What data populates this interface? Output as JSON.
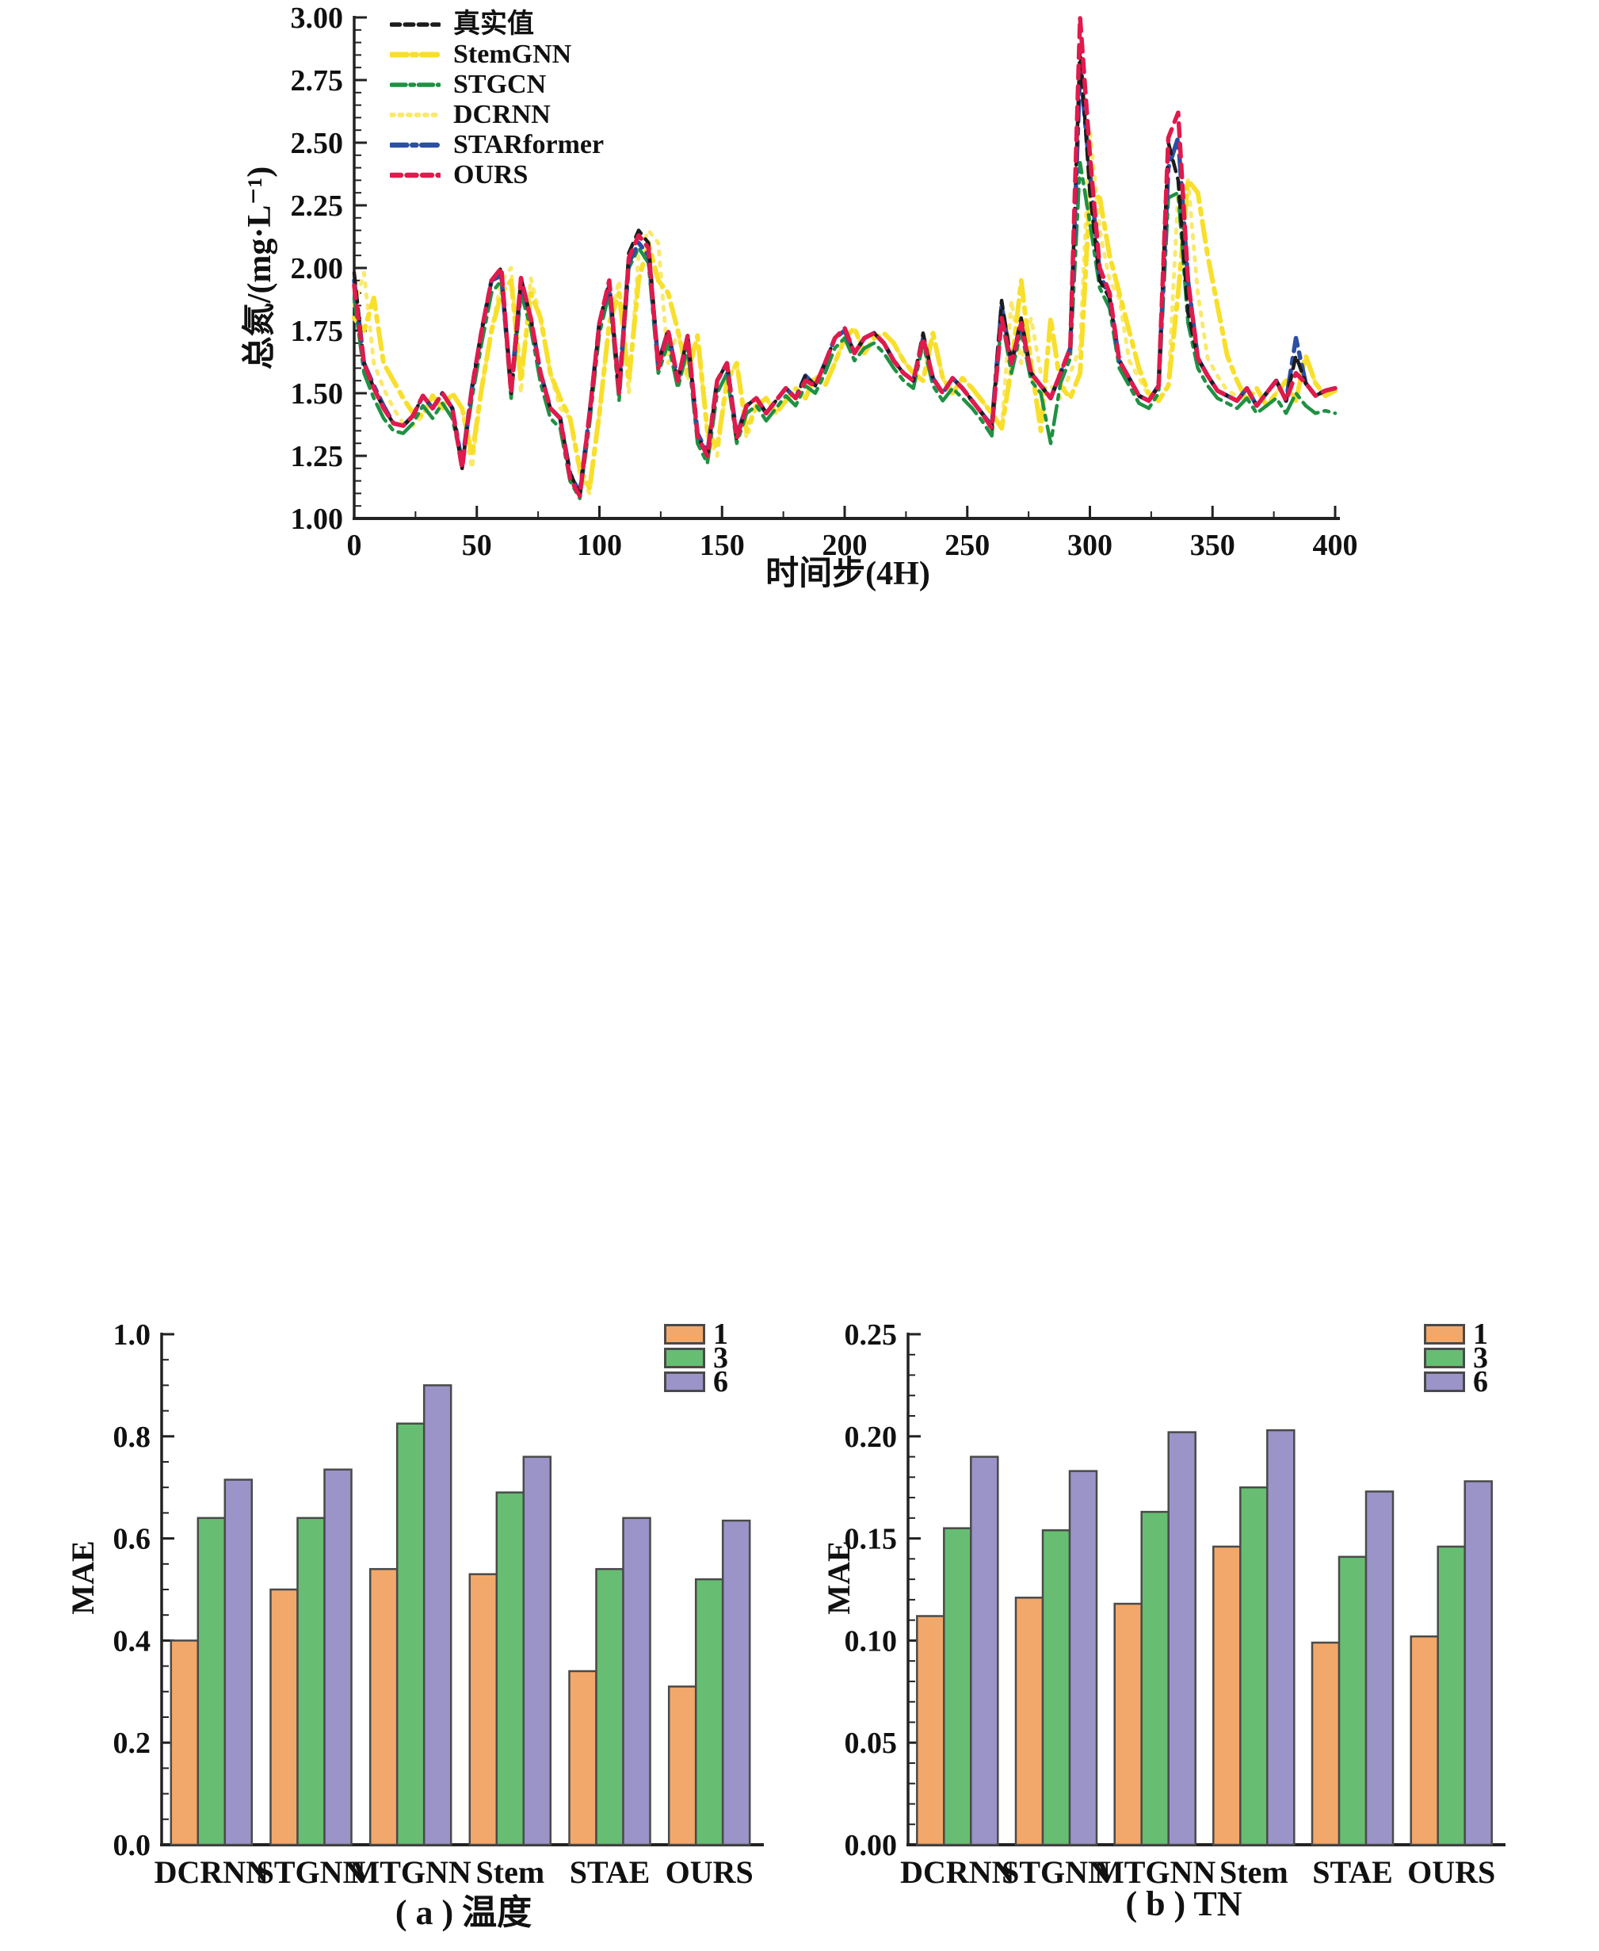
{
  "figure": {
    "background": "#ffffff"
  },
  "chart_data": [
    {
      "id": "line-tn-forecast",
      "type": "line",
      "title": "",
      "xlabel": "时间步(4H)",
      "ylabel": "总氮/(mg·L⁻¹)",
      "xlim": [
        0,
        400
      ],
      "ylim": [
        1.0,
        3.0
      ],
      "xticks": [
        0,
        50,
        100,
        150,
        200,
        250,
        300,
        350,
        400
      ],
      "xtick_labels": [
        "0",
        "50",
        "100",
        "150",
        "200",
        "250",
        "300",
        "350",
        "400"
      ],
      "yticks": [
        1.0,
        1.25,
        1.5,
        1.75,
        2.0,
        2.25,
        2.5,
        2.75,
        3.0
      ],
      "ytick_labels": [
        "1.00",
        "1.25",
        "1.50",
        "1.75",
        "2.00",
        "2.25",
        "2.50",
        "2.75",
        "3.00"
      ],
      "x_minor_step": 25,
      "y_minor_step": 0.05,
      "x_start": 0,
      "x_step": 4,
      "grid": false,
      "legend_position": "upper-left",
      "series": [
        {
          "name": "真实值",
          "color": "#1c1c1c",
          "dash": [
            14,
            9
          ],
          "width": 4.5,
          "values": [
            1.98,
            1.62,
            1.52,
            1.44,
            1.38,
            1.37,
            1.41,
            1.49,
            1.44,
            1.5,
            1.44,
            1.2,
            1.52,
            1.75,
            1.95,
            2.0,
            1.5,
            1.96,
            1.8,
            1.58,
            1.44,
            1.4,
            1.18,
            1.1,
            1.42,
            1.78,
            1.95,
            1.5,
            2.06,
            2.15,
            2.1,
            1.62,
            1.75,
            1.55,
            1.73,
            1.33,
            1.25,
            1.55,
            1.62,
            1.32,
            1.45,
            1.48,
            1.42,
            1.47,
            1.52,
            1.48,
            1.57,
            1.53,
            1.62,
            1.72,
            1.76,
            1.66,
            1.72,
            1.74,
            1.7,
            1.63,
            1.58,
            1.55,
            1.74,
            1.56,
            1.5,
            1.56,
            1.52,
            1.47,
            1.42,
            1.36,
            1.87,
            1.62,
            1.8,
            1.58,
            1.53,
            1.48,
            1.58,
            1.68,
            2.88,
            2.3,
            1.95,
            1.88,
            1.63,
            1.56,
            1.49,
            1.47,
            1.53,
            2.5,
            2.35,
            1.82,
            1.64,
            1.57,
            1.51,
            1.49,
            1.47,
            1.52,
            1.45,
            1.5,
            1.55,
            1.47,
            1.65,
            1.54,
            1.49,
            1.51,
            1.52
          ]
        },
        {
          "name": "StemGNN",
          "color": "#F8DF2B",
          "dash": [
            26,
            9,
            7,
            9
          ],
          "width": 6,
          "values": [
            1.8,
            1.75,
            1.88,
            1.62,
            1.55,
            1.48,
            1.42,
            1.41,
            1.49,
            1.44,
            1.5,
            1.44,
            1.25,
            1.52,
            1.75,
            1.9,
            1.95,
            1.55,
            1.9,
            1.8,
            1.58,
            1.48,
            1.4,
            1.2,
            1.12,
            1.42,
            1.78,
            1.9,
            1.55,
            1.95,
            2.1,
            1.95,
            1.9,
            1.75,
            1.58,
            1.73,
            1.35,
            1.28,
            1.55,
            1.62,
            1.35,
            1.45,
            1.48,
            1.42,
            1.47,
            1.52,
            1.48,
            1.57,
            1.53,
            1.62,
            1.72,
            1.76,
            1.66,
            1.72,
            1.74,
            1.7,
            1.63,
            1.58,
            1.55,
            1.74,
            1.56,
            1.5,
            1.56,
            1.52,
            1.47,
            1.42,
            1.36,
            1.6,
            1.95,
            1.62,
            1.35,
            1.8,
            1.53,
            1.48,
            1.58,
            2.3,
            2.28,
            2.05,
            1.9,
            1.75,
            1.6,
            1.5,
            1.47,
            1.53,
            1.9,
            2.35,
            2.3,
            2.05,
            1.85,
            1.65,
            1.55,
            1.47,
            1.52,
            1.45,
            1.5,
            1.55,
            1.47,
            1.65,
            1.54,
            1.49,
            1.51
          ]
        },
        {
          "name": "STGCN",
          "color": "#1F9143",
          "dash": [
            24,
            8,
            6,
            8
          ],
          "width": 4.5,
          "values": [
            1.88,
            1.58,
            1.48,
            1.4,
            1.35,
            1.34,
            1.38,
            1.45,
            1.4,
            1.46,
            1.4,
            1.22,
            1.48,
            1.7,
            1.9,
            1.95,
            1.48,
            1.9,
            1.76,
            1.54,
            1.4,
            1.36,
            1.15,
            1.08,
            1.38,
            1.74,
            1.9,
            1.47,
            2.0,
            2.08,
            2.02,
            1.58,
            1.7,
            1.52,
            1.68,
            1.3,
            1.22,
            1.5,
            1.58,
            1.3,
            1.42,
            1.45,
            1.39,
            1.44,
            1.49,
            1.45,
            1.53,
            1.5,
            1.58,
            1.68,
            1.72,
            1.63,
            1.68,
            1.7,
            1.66,
            1.6,
            1.55,
            1.52,
            1.7,
            1.53,
            1.47,
            1.52,
            1.48,
            1.44,
            1.39,
            1.33,
            1.8,
            1.58,
            1.75,
            1.55,
            1.5,
            1.3,
            1.54,
            1.64,
            2.42,
            2.18,
            1.92,
            1.84,
            1.6,
            1.53,
            1.46,
            1.44,
            1.5,
            2.28,
            2.3,
            1.78,
            1.6,
            1.53,
            1.48,
            1.46,
            1.44,
            1.48,
            1.42,
            1.45,
            1.48,
            1.42,
            1.5,
            1.45,
            1.42,
            1.43,
            1.42
          ]
        },
        {
          "name": "DCRNN",
          "color": "#F9E96E",
          "dash": [
            4,
            10
          ],
          "width": 5,
          "values": [
            1.85,
            1.98,
            1.62,
            1.52,
            1.44,
            1.38,
            1.37,
            1.41,
            1.49,
            1.44,
            1.5,
            1.44,
            1.2,
            1.52,
            1.75,
            1.95,
            2.0,
            1.5,
            1.96,
            1.8,
            1.58,
            1.44,
            1.4,
            1.18,
            1.1,
            1.42,
            1.78,
            1.95,
            1.5,
            2.06,
            2.15,
            2.1,
            1.62,
            1.75,
            1.55,
            1.73,
            1.33,
            1.25,
            1.55,
            1.62,
            1.32,
            1.45,
            1.48,
            1.42,
            1.47,
            1.52,
            1.48,
            1.57,
            1.53,
            1.62,
            1.72,
            1.76,
            1.66,
            1.72,
            1.74,
            1.7,
            1.63,
            1.58,
            1.55,
            1.74,
            1.56,
            1.5,
            1.56,
            1.52,
            1.47,
            1.42,
            1.36,
            1.87,
            1.62,
            1.8,
            1.58,
            1.53,
            1.48,
            1.58,
            1.68,
            2.55,
            2.15,
            1.95,
            1.88,
            1.63,
            1.56,
            1.49,
            1.47,
            1.53,
            2.3,
            2.35,
            1.9,
            1.64,
            1.57,
            1.51,
            1.49,
            1.47,
            1.52,
            1.45,
            1.5,
            1.55,
            1.47,
            1.65,
            1.54,
            1.49,
            1.51
          ]
        },
        {
          "name": "STARformer",
          "color": "#2B4FA3",
          "dash": [
            26,
            9,
            7,
            9
          ],
          "width": 5.5,
          "values": [
            1.95,
            1.62,
            1.53,
            1.45,
            1.38,
            1.37,
            1.41,
            1.49,
            1.44,
            1.5,
            1.44,
            1.22,
            1.52,
            1.75,
            1.95,
            1.97,
            1.52,
            1.94,
            1.8,
            1.58,
            1.44,
            1.4,
            1.18,
            1.1,
            1.42,
            1.78,
            1.93,
            1.52,
            2.02,
            2.1,
            2.05,
            1.62,
            1.75,
            1.55,
            1.72,
            1.34,
            1.26,
            1.55,
            1.62,
            1.33,
            1.45,
            1.48,
            1.42,
            1.47,
            1.52,
            1.48,
            1.57,
            1.53,
            1.62,
            1.72,
            1.75,
            1.66,
            1.72,
            1.74,
            1.7,
            1.63,
            1.58,
            1.55,
            1.72,
            1.56,
            1.5,
            1.56,
            1.52,
            1.47,
            1.42,
            1.37,
            1.85,
            1.62,
            1.78,
            1.58,
            1.53,
            1.48,
            1.58,
            1.68,
            2.8,
            2.38,
            1.98,
            1.88,
            1.63,
            1.56,
            1.49,
            1.47,
            1.53,
            2.4,
            2.52,
            1.95,
            1.64,
            1.57,
            1.51,
            1.49,
            1.47,
            1.52,
            1.45,
            1.5,
            1.55,
            1.47,
            1.72,
            1.54,
            1.49,
            1.51,
            1.52
          ]
        },
        {
          "name": "OURS",
          "color": "#E01A4C",
          "dash": [
            16,
            10
          ],
          "width": 5.5,
          "values": [
            1.93,
            1.62,
            1.52,
            1.44,
            1.38,
            1.37,
            1.41,
            1.49,
            1.44,
            1.5,
            1.44,
            1.2,
            1.52,
            1.75,
            1.95,
            2.0,
            1.5,
            1.96,
            1.8,
            1.58,
            1.44,
            1.4,
            1.16,
            1.09,
            1.42,
            1.78,
            1.95,
            1.5,
            2.04,
            2.13,
            2.08,
            1.6,
            1.75,
            1.55,
            1.73,
            1.33,
            1.25,
            1.55,
            1.62,
            1.32,
            1.45,
            1.48,
            1.42,
            1.47,
            1.52,
            1.48,
            1.55,
            1.53,
            1.62,
            1.72,
            1.76,
            1.66,
            1.72,
            1.74,
            1.7,
            1.63,
            1.58,
            1.55,
            1.72,
            1.56,
            1.5,
            1.56,
            1.52,
            1.47,
            1.42,
            1.36,
            1.8,
            1.62,
            1.78,
            1.58,
            1.53,
            1.48,
            1.58,
            1.68,
            3.0,
            2.45,
            2.0,
            1.9,
            1.63,
            1.56,
            1.49,
            1.47,
            1.53,
            2.52,
            2.62,
            1.95,
            1.64,
            1.57,
            1.51,
            1.49,
            1.47,
            1.52,
            1.45,
            1.5,
            1.55,
            1.47,
            1.58,
            1.54,
            1.49,
            1.51,
            1.52
          ]
        }
      ]
    },
    {
      "id": "bar-mae-temperature",
      "type": "bar",
      "caption": "( a ) 温度",
      "ylabel": "MAE",
      "categories": [
        "DCRNN",
        "STGNN",
        "MTGNN",
        "Stem",
        "STAE",
        "OURS"
      ],
      "ylim": [
        0,
        1.0
      ],
      "yticks": [
        0,
        0.2,
        0.4,
        0.6,
        0.8,
        1.0
      ],
      "ytick_labels": [
        "0.0",
        "0.2",
        "0.4",
        "0.6",
        "0.8",
        "1.0"
      ],
      "y_minor_step": 0.05,
      "bar_edge_color": "#4a4a4a",
      "legend_position": "upper-right",
      "series": [
        {
          "name": "1",
          "color": "#F2A86A",
          "values": [
            0.4,
            0.5,
            0.54,
            0.53,
            0.34,
            0.31
          ]
        },
        {
          "name": "3",
          "color": "#67BE72",
          "values": [
            0.64,
            0.64,
            0.825,
            0.69,
            0.54,
            0.52
          ]
        },
        {
          "name": "6",
          "color": "#9A94C8",
          "values": [
            0.715,
            0.735,
            0.9,
            0.76,
            0.64,
            0.635
          ]
        }
      ]
    },
    {
      "id": "bar-mae-tn",
      "type": "bar",
      "caption": "( b ) TN",
      "ylabel": "MAE",
      "categories": [
        "DCRNN",
        "STGNN",
        "MTGNN",
        "Stem",
        "STAE",
        "OURS"
      ],
      "ylim": [
        0,
        0.25
      ],
      "yticks": [
        0,
        0.05,
        0.1,
        0.15,
        0.2,
        0.25
      ],
      "ytick_labels": [
        "0.00",
        "0.05",
        "0.10",
        "0.15",
        "0.20",
        "0.25"
      ],
      "y_minor_step": 0.01,
      "bar_edge_color": "#4a4a4a",
      "legend_position": "upper-right",
      "series": [
        {
          "name": "1",
          "color": "#F2A86A",
          "values": [
            0.112,
            0.121,
            0.118,
            0.146,
            0.099,
            0.102
          ]
        },
        {
          "name": "3",
          "color": "#67BE72",
          "values": [
            0.155,
            0.154,
            0.163,
            0.175,
            0.141,
            0.146
          ]
        },
        {
          "name": "6",
          "color": "#9A94C8",
          "values": [
            0.19,
            0.183,
            0.202,
            0.203,
            0.173,
            0.178
          ]
        }
      ]
    }
  ]
}
